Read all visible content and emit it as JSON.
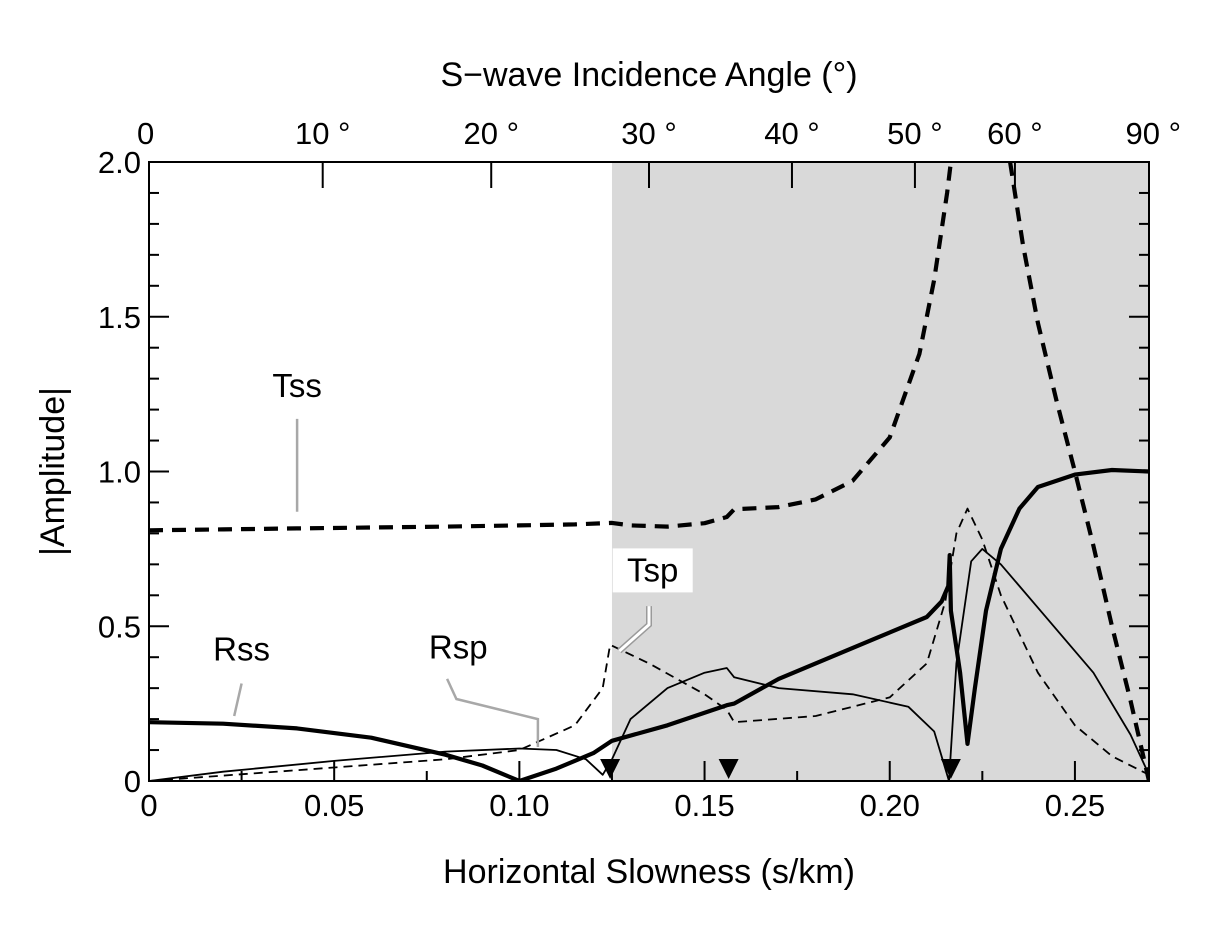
{
  "chart_data": {
    "type": "line",
    "xlabel": "Horizontal Slowness (s/km)",
    "ylabel": "|Amplitude|",
    "top_xlabel": "S−wave Incidence Angle (°)",
    "xlim": [
      0,
      0.27
    ],
    "ylim": [
      0,
      2.0
    ],
    "x_ticks": [
      {
        "value": 0,
        "label": "0"
      },
      {
        "value": 0.05,
        "label": "0.05"
      },
      {
        "value": 0.1,
        "label": "0.10"
      },
      {
        "value": 0.15,
        "label": "0.15"
      },
      {
        "value": 0.2,
        "label": "0.20"
      },
      {
        "value": 0.25,
        "label": "0.25"
      }
    ],
    "y_ticks": [
      {
        "value": 0,
        "label": "0"
      },
      {
        "value": 0.5,
        "label": "0.5"
      },
      {
        "value": 1.0,
        "label": "1.0"
      },
      {
        "value": 1.5,
        "label": "1.5"
      },
      {
        "value": 2.0,
        "label": "2.0"
      }
    ],
    "top_ticks": [
      {
        "slowness": 0.0,
        "label": "0"
      },
      {
        "slowness": 0.0469,
        "label": "10 °"
      },
      {
        "slowness": 0.0924,
        "label": "20 °"
      },
      {
        "slowness": 0.135,
        "label": "30 °"
      },
      {
        "slowness": 0.1736,
        "label": "40 °"
      },
      {
        "slowness": 0.2068,
        "label": "50 °"
      },
      {
        "slowness": 0.2338,
        "label": "60 °"
      },
      {
        "slowness": 0.27,
        "label": "90 °"
      }
    ],
    "shaded_region": {
      "x_start": 0.125,
      "x_end": 0.27,
      "color": "#d9d9d9"
    },
    "markers": [
      0.1245,
      0.1565,
      0.2165
    ],
    "series": [
      {
        "name": "Tss",
        "style": "thick-dashed",
        "segments": [
          [
            [
              0,
              0.81
            ],
            [
              0.02,
              0.813
            ],
            [
              0.04,
              0.816
            ],
            [
              0.06,
              0.819
            ],
            [
              0.08,
              0.822
            ],
            [
              0.1,
              0.826
            ],
            [
              0.115,
              0.829
            ],
            [
              0.125,
              0.834
            ],
            [
              0.13,
              0.826
            ],
            [
              0.14,
              0.822
            ],
            [
              0.15,
              0.833
            ],
            [
              0.156,
              0.853
            ],
            [
              0.158,
              0.878
            ],
            [
              0.17,
              0.885
            ],
            [
              0.18,
              0.91
            ],
            [
              0.19,
              0.97
            ],
            [
              0.2,
              1.11
            ],
            [
              0.208,
              1.38
            ],
            [
              0.212,
              1.62
            ],
            [
              0.2155,
              1.9
            ],
            [
              0.2165,
              2.0
            ]
          ],
          [
            [
              0.2325,
              2.0
            ],
            [
              0.236,
              1.73
            ],
            [
              0.24,
              1.48
            ],
            [
              0.245,
              1.23
            ],
            [
              0.25,
              1.0
            ],
            [
              0.255,
              0.76
            ],
            [
              0.26,
              0.5
            ],
            [
              0.265,
              0.26
            ],
            [
              0.27,
              0.0
            ]
          ]
        ]
      },
      {
        "name": "Rss",
        "style": "thick-solid",
        "segments": [
          [
            [
              0,
              0.19
            ],
            [
              0.02,
              0.185
            ],
            [
              0.04,
              0.17
            ],
            [
              0.06,
              0.14
            ],
            [
              0.08,
              0.085
            ],
            [
              0.09,
              0.05
            ],
            [
              0.1,
              0.0
            ],
            [
              0.11,
              0.04
            ],
            [
              0.12,
              0.09
            ],
            [
              0.125,
              0.13
            ],
            [
              0.14,
              0.18
            ],
            [
              0.156,
              0.245
            ],
            [
              0.158,
              0.25
            ],
            [
              0.17,
              0.33
            ],
            [
              0.19,
              0.43
            ],
            [
              0.21,
              0.53
            ],
            [
              0.214,
              0.58
            ],
            [
              0.2158,
              0.63
            ],
            [
              0.2162,
              0.73
            ],
            [
              0.2165,
              0.55
            ],
            [
              0.219,
              0.35
            ],
            [
              0.221,
              0.12
            ],
            [
              0.223,
              0.3
            ],
            [
              0.226,
              0.55
            ],
            [
              0.23,
              0.75
            ],
            [
              0.235,
              0.88
            ],
            [
              0.24,
              0.95
            ],
            [
              0.25,
              0.99
            ],
            [
              0.26,
              1.005
            ],
            [
              0.27,
              1.0
            ]
          ]
        ]
      },
      {
        "name": "Rsp",
        "style": "thin-solid",
        "segments": [
          [
            [
              0,
              0.0
            ],
            [
              0.02,
              0.03
            ],
            [
              0.05,
              0.065
            ],
            [
              0.08,
              0.095
            ],
            [
              0.1,
              0.105
            ],
            [
              0.11,
              0.1
            ],
            [
              0.118,
              0.07
            ],
            [
              0.1225,
              0.02
            ],
            [
              0.125,
              0.07
            ],
            [
              0.13,
              0.2
            ],
            [
              0.14,
              0.3
            ],
            [
              0.15,
              0.35
            ],
            [
              0.156,
              0.365
            ],
            [
              0.158,
              0.335
            ],
            [
              0.17,
              0.3
            ],
            [
              0.19,
              0.28
            ],
            [
              0.205,
              0.24
            ],
            [
              0.212,
              0.16
            ],
            [
              0.216,
              0.0
            ],
            [
              0.218,
              0.38
            ],
            [
              0.222,
              0.71
            ],
            [
              0.225,
              0.75
            ],
            [
              0.23,
              0.7
            ],
            [
              0.24,
              0.56
            ],
            [
              0.255,
              0.35
            ],
            [
              0.265,
              0.15
            ],
            [
              0.27,
              0.02
            ]
          ]
        ]
      },
      {
        "name": "Tsp",
        "style": "thin-dashed",
        "segments": [
          [
            [
              0,
              0.0
            ],
            [
              0.04,
              0.035
            ],
            [
              0.08,
              0.07
            ],
            [
              0.1,
              0.1
            ],
            [
              0.115,
              0.18
            ],
            [
              0.1225,
              0.3
            ],
            [
              0.1245,
              0.44
            ],
            [
              0.135,
              0.38
            ],
            [
              0.15,
              0.28
            ],
            [
              0.156,
              0.23
            ],
            [
              0.158,
              0.19
            ],
            [
              0.18,
              0.21
            ],
            [
              0.2,
              0.27
            ],
            [
              0.21,
              0.38
            ],
            [
              0.215,
              0.58
            ],
            [
              0.218,
              0.8
            ],
            [
              0.221,
              0.88
            ],
            [
              0.225,
              0.78
            ],
            [
              0.23,
              0.6
            ],
            [
              0.24,
              0.35
            ],
            [
              0.25,
              0.18
            ],
            [
              0.26,
              0.08
            ],
            [
              0.27,
              0.02
            ]
          ]
        ]
      }
    ],
    "annotations": [
      {
        "text": "Tss",
        "label_x": 0.04,
        "label_y": 1.24,
        "line": [
          [
            0.04,
            1.17
          ],
          [
            0.04,
            0.87
          ]
        ],
        "boxed": false
      },
      {
        "text": "Rss",
        "label_x": 0.025,
        "label_y": 0.39,
        "line": [
          [
            0.025,
            0.315
          ],
          [
            0.023,
            0.21
          ]
        ],
        "boxed": false
      },
      {
        "text": "Rsp",
        "label_x": 0.0835,
        "label_y": 0.395,
        "line": [
          [
            0.0805,
            0.33
          ],
          [
            0.083,
            0.265
          ],
          [
            0.105,
            0.2
          ],
          [
            0.105,
            0.11
          ]
        ],
        "boxed": false
      },
      {
        "text": "Tsp",
        "label_x": 0.136,
        "label_y": 0.645,
        "line": [
          [
            0.135,
            0.565
          ],
          [
            0.135,
            0.505
          ],
          [
            0.127,
            0.42
          ]
        ],
        "boxed": true
      }
    ]
  }
}
